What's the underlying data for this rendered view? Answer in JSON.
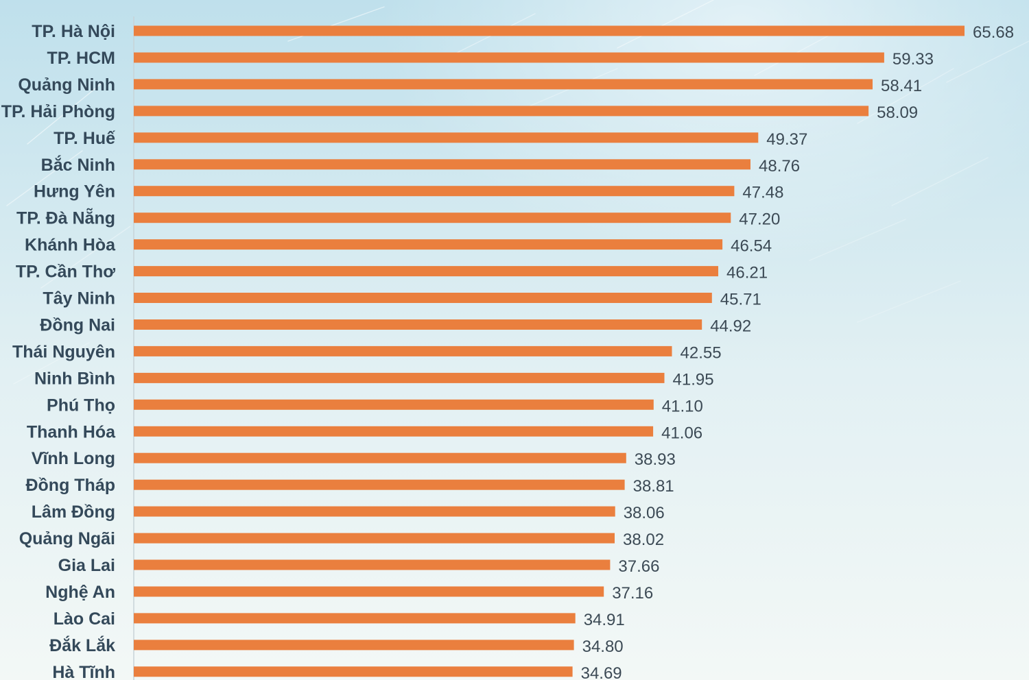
{
  "colors": {
    "bar": "#ea7f3e",
    "background_top": "#bfe0ec",
    "background_bottom": "#f3f8f6",
    "axis": "#c7d3d8",
    "label": "#34495a",
    "value": "#3c4a55"
  },
  "chart_data": {
    "type": "bar",
    "orientation": "horizontal",
    "title": "",
    "xlabel": "",
    "ylabel": "",
    "grid": false,
    "legend": "none",
    "xlim": [
      0,
      65.68
    ],
    "categories": [
      "TP. Hà Nội",
      "TP. HCM",
      "Quảng Ninh",
      "TP. Hải Phòng",
      "TP. Huế",
      "Bắc Ninh",
      "Hưng Yên",
      "TP. Đà Nẵng",
      "Khánh Hòa",
      "TP. Cần Thơ",
      "Tây Ninh",
      "Đồng Nai",
      "Thái Nguyên",
      "Ninh Bình",
      "Phú Thọ",
      "Thanh Hóa",
      "Vĩnh Long",
      "Đồng Tháp",
      "Lâm Đồng",
      "Quảng Ngãi",
      "Gia Lai",
      "Nghệ An",
      "Lào Cai",
      "Đắk Lắk",
      "Hà Tĩnh"
    ],
    "values": [
      65.68,
      59.33,
      58.41,
      58.09,
      49.37,
      48.76,
      47.48,
      47.2,
      46.54,
      46.21,
      45.71,
      44.92,
      42.55,
      41.95,
      41.1,
      41.06,
      38.93,
      38.81,
      38.06,
      38.02,
      37.66,
      37.16,
      34.91,
      34.8,
      34.69
    ],
    "value_labels": [
      "65.68",
      "59.33",
      "58.41",
      "58.09",
      "49.37",
      "48.76",
      "47.48",
      "47.20",
      "46.54",
      "46.21",
      "45.71",
      "44.92",
      "42.55",
      "41.95",
      "41.10",
      "41.06",
      "38.93",
      "38.81",
      "38.06",
      "38.02",
      "37.66",
      "37.16",
      "34.91",
      "34.80",
      "34.69"
    ]
  }
}
